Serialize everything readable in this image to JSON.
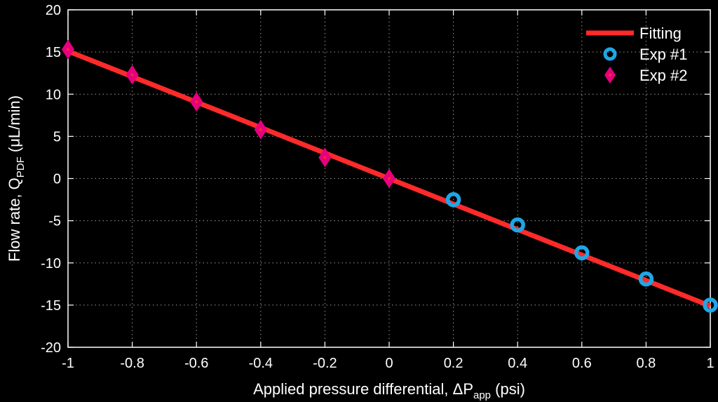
{
  "chart_data": {
    "type": "scatter",
    "title": "",
    "xlabel": {
      "main": "Applied pressure differential, ΔP",
      "sub": "app",
      "unit": " (psi)"
    },
    "ylabel": {
      "main": "Flow rate, Q",
      "sub": "PDF",
      "unit": " (μL/min)"
    },
    "xlim": [
      -1,
      1
    ],
    "ylim": [
      -20,
      20
    ],
    "xticks": [
      -1,
      -0.8,
      -0.6,
      -0.4,
      -0.2,
      0,
      0.2,
      0.4,
      0.6,
      0.8,
      1
    ],
    "xtick_labels": [
      "-1",
      "-0.8",
      "-0.6",
      "-0.4",
      "-0.2",
      "0",
      "0.2",
      "0.4",
      "0.6",
      "0.8",
      "1"
    ],
    "yticks": [
      -20,
      -15,
      -10,
      -5,
      0,
      5,
      10,
      15,
      20
    ],
    "ytick_labels": [
      "-20",
      "-15",
      "-10",
      "-5",
      "0",
      "5",
      "10",
      "15",
      "20"
    ],
    "grid": true,
    "legend_position": "top-right",
    "series": [
      {
        "name": "Fitting",
        "kind": "line",
        "color": "#ff2a2a",
        "x": [
          -1,
          1
        ],
        "y": [
          15.1,
          -15.1
        ]
      },
      {
        "name": "Exp #1",
        "kind": "circle-marker",
        "color": "#1ea7e6",
        "x": [
          0.2,
          0.4,
          0.6,
          0.8,
          1.0
        ],
        "y": [
          -2.5,
          -5.5,
          -8.8,
          -11.9,
          -15.0
        ]
      },
      {
        "name": "Exp #2",
        "kind": "diamond-marker",
        "color": "#e6007e",
        "x": [
          -1.0,
          -0.8,
          -0.6,
          -0.4,
          -0.2,
          0.0
        ],
        "y": [
          15.3,
          12.3,
          9.1,
          5.8,
          2.5,
          0.0
        ]
      }
    ]
  }
}
